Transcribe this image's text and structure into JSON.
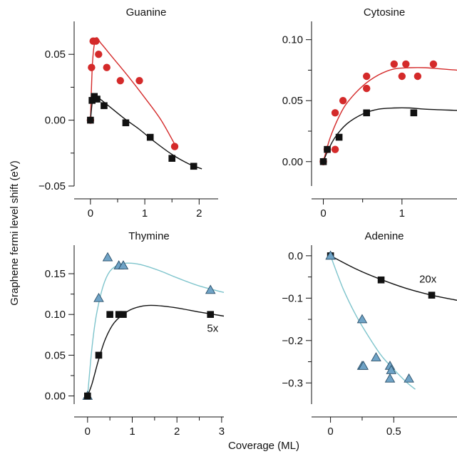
{
  "figure": {
    "ylabel": "Graphene fermi level shift (eV)",
    "xlabel": "Coverage (ML)"
  },
  "colors": {
    "red": "#d42a2a",
    "black": "#111111",
    "teal": "#7ec4cc",
    "triangle_fill": "#6fa3c6",
    "triangle_edge": "#2a4e68"
  },
  "chart_data": [
    {
      "type": "scatter",
      "title": "Guanine",
      "xlim": [
        -0.3,
        2.35
      ],
      "ylim": [
        -0.05,
        0.075
      ],
      "xticks": [
        {
          "v": 0,
          "label": "0"
        },
        {
          "v": 1,
          "label": "1"
        },
        {
          "v": 2,
          "label": "2"
        }
      ],
      "yticks": [
        {
          "v": -0.05,
          "label": "−0.05"
        },
        {
          "v": 0,
          "label": "0.00"
        },
        {
          "v": 0.05,
          "label": "0.05"
        }
      ],
      "series": [
        {
          "marker": "circle",
          "color": "#d42a2a",
          "points": [
            [
              0.0,
              0.0
            ],
            [
              0.02,
              0.04
            ],
            [
              0.05,
              0.06
            ],
            [
              0.1,
              0.06
            ],
            [
              0.15,
              0.05
            ],
            [
              0.3,
              0.04
            ],
            [
              0.55,
              0.03
            ],
            [
              0.9,
              0.03
            ],
            [
              1.55,
              -0.02
            ]
          ],
          "curve": [
            [
              0.0,
              0.0
            ],
            [
              0.04,
              0.045
            ],
            [
              0.1,
              0.062
            ],
            [
              0.2,
              0.058
            ],
            [
              0.4,
              0.048
            ],
            [
              0.7,
              0.033
            ],
            [
              1.0,
              0.017
            ],
            [
              1.3,
              0.0
            ],
            [
              1.6,
              -0.022
            ]
          ]
        },
        {
          "marker": "square",
          "color": "#111111",
          "points": [
            [
              0.0,
              0.0
            ],
            [
              0.03,
              0.015
            ],
            [
              0.07,
              0.018
            ],
            [
              0.12,
              0.016
            ],
            [
              0.25,
              0.011
            ],
            [
              0.65,
              -0.002
            ],
            [
              1.1,
              -0.013
            ],
            [
              1.5,
              -0.029
            ],
            [
              1.9,
              -0.035
            ]
          ],
          "curve": [
            [
              0.0,
              0.0
            ],
            [
              0.04,
              0.015
            ],
            [
              0.1,
              0.018
            ],
            [
              0.3,
              0.012
            ],
            [
              0.6,
              0.002
            ],
            [
              0.9,
              -0.007
            ],
            [
              1.2,
              -0.017
            ],
            [
              1.5,
              -0.026
            ],
            [
              1.8,
              -0.033
            ],
            [
              2.05,
              -0.037
            ]
          ]
        }
      ]
    },
    {
      "type": "scatter",
      "title": "Cytosine",
      "xlim": [
        -0.15,
        1.7
      ],
      "ylim": [
        -0.02,
        0.115
      ],
      "xticks": [
        {
          "v": 0,
          "label": "0"
        },
        {
          "v": 1,
          "label": "1"
        }
      ],
      "yticks": [
        {
          "v": 0,
          "label": "0.00"
        },
        {
          "v": 0.05,
          "label": "0.05"
        },
        {
          "v": 0.1,
          "label": "0.10"
        }
      ],
      "series": [
        {
          "marker": "circle",
          "color": "#d42a2a",
          "points": [
            [
              0.0,
              0.0
            ],
            [
              0.05,
              0.01
            ],
            [
              0.15,
              0.04
            ],
            [
              0.15,
              0.01
            ],
            [
              0.25,
              0.05
            ],
            [
              0.55,
              0.07
            ],
            [
              0.55,
              0.06
            ],
            [
              0.9,
              0.08
            ],
            [
              1.0,
              0.07
            ],
            [
              1.05,
              0.08
            ],
            [
              1.2,
              0.07
            ],
            [
              1.4,
              0.08
            ]
          ],
          "curve": [
            [
              0.0,
              0.0
            ],
            [
              0.05,
              0.012
            ],
            [
              0.1,
              0.022
            ],
            [
              0.2,
              0.037
            ],
            [
              0.3,
              0.048
            ],
            [
              0.5,
              0.062
            ],
            [
              0.7,
              0.071
            ],
            [
              0.9,
              0.076
            ],
            [
              1.1,
              0.077
            ],
            [
              1.3,
              0.077
            ],
            [
              1.5,
              0.076
            ],
            [
              1.7,
              0.075
            ]
          ]
        },
        {
          "marker": "square",
          "color": "#111111",
          "points": [
            [
              0.0,
              0.0
            ],
            [
              0.05,
              0.01
            ],
            [
              0.2,
              0.02
            ],
            [
              0.55,
              0.04
            ],
            [
              1.15,
              0.04
            ]
          ],
          "curve": [
            [
              0.0,
              0.0
            ],
            [
              0.05,
              0.008
            ],
            [
              0.15,
              0.02
            ],
            [
              0.3,
              0.031
            ],
            [
              0.5,
              0.039
            ],
            [
              0.7,
              0.043
            ],
            [
              0.9,
              0.044
            ],
            [
              1.1,
              0.044
            ],
            [
              1.3,
              0.043
            ],
            [
              1.7,
              0.042
            ]
          ]
        }
      ]
    },
    {
      "type": "scatter",
      "title": "Thymine",
      "xlim": [
        -0.3,
        3.05
      ],
      "ylim": [
        -0.01,
        0.185
      ],
      "xticks": [
        {
          "v": 0,
          "label": "0"
        },
        {
          "v": 1,
          "label": "1"
        },
        {
          "v": 2,
          "label": "2"
        },
        {
          "v": 3,
          "label": "3"
        }
      ],
      "yticks": [
        {
          "v": 0,
          "label": "0.00"
        },
        {
          "v": 0.05,
          "label": "0.05"
        },
        {
          "v": 0.1,
          "label": "0.10"
        },
        {
          "v": 0.15,
          "label": "0.15"
        }
      ],
      "annotation": {
        "text": "5x",
        "x": 2.8,
        "y": 0.083
      },
      "series": [
        {
          "marker": "triangle",
          "color": "#6fa3c6",
          "curve_color": "#7ec4cc",
          "points": [
            [
              0.0,
              0.0
            ],
            [
              0.25,
              0.12
            ],
            [
              0.45,
              0.17
            ],
            [
              0.7,
              0.16
            ],
            [
              0.8,
              0.16
            ],
            [
              2.75,
              0.13
            ]
          ],
          "curve": [
            [
              0.0,
              0.0
            ],
            [
              0.1,
              0.06
            ],
            [
              0.2,
              0.1
            ],
            [
              0.35,
              0.135
            ],
            [
              0.5,
              0.153
            ],
            [
              0.7,
              0.161
            ],
            [
              0.9,
              0.163
            ],
            [
              1.2,
              0.161
            ],
            [
              1.6,
              0.154
            ],
            [
              2.0,
              0.145
            ],
            [
              2.5,
              0.135
            ],
            [
              3.05,
              0.127
            ]
          ]
        },
        {
          "marker": "square",
          "color": "#111111",
          "points": [
            [
              0.0,
              0.0
            ],
            [
              0.25,
              0.05
            ],
            [
              0.5,
              0.1
            ],
            [
              0.7,
              0.1
            ],
            [
              0.8,
              0.1
            ],
            [
              2.75,
              0.1
            ]
          ],
          "curve": [
            [
              0.0,
              0.0
            ],
            [
              0.1,
              0.015
            ],
            [
              0.25,
              0.045
            ],
            [
              0.4,
              0.07
            ],
            [
              0.6,
              0.09
            ],
            [
              0.9,
              0.104
            ],
            [
              1.2,
              0.11
            ],
            [
              1.5,
              0.111
            ],
            [
              2.0,
              0.108
            ],
            [
              2.5,
              0.103
            ],
            [
              3.05,
              0.098
            ]
          ]
        }
      ]
    },
    {
      "type": "scatter",
      "title": "Adenine",
      "xlim": [
        -0.15,
        1.0
      ],
      "ylim": [
        -0.35,
        0.025
      ],
      "xticks": [
        {
          "v": 0,
          "label": "0"
        },
        {
          "v": 0.5,
          "label": "0.5"
        }
      ],
      "yticks": [
        {
          "v": -0.3,
          "label": "−0.3"
        },
        {
          "v": -0.2,
          "label": "−0.2"
        },
        {
          "v": -0.1,
          "label": "−0.1"
        },
        {
          "v": 0,
          "label": "0.0"
        }
      ],
      "annotation": {
        "text": "20x",
        "x": 0.77,
        "y": -0.055
      },
      "series": [
        {
          "marker": "square",
          "color": "#111111",
          "points": [
            [
              0.0,
              0.0
            ],
            [
              0.4,
              -0.057
            ],
            [
              0.8,
              -0.093
            ]
          ],
          "curve": [
            [
              0.0,
              0.0
            ],
            [
              0.2,
              -0.031
            ],
            [
              0.4,
              -0.056
            ],
            [
              0.6,
              -0.077
            ],
            [
              0.8,
              -0.093
            ],
            [
              1.0,
              -0.105
            ]
          ]
        },
        {
          "marker": "triangle",
          "color": "#6fa3c6",
          "curve_color": "#7ec4cc",
          "points": [
            [
              0.0,
              0.0
            ],
            [
              0.25,
              -0.15
            ],
            [
              0.25,
              -0.26
            ],
            [
              0.26,
              -0.26
            ],
            [
              0.36,
              -0.24
            ],
            [
              0.47,
              -0.26
            ],
            [
              0.48,
              -0.27
            ],
            [
              0.47,
              -0.29
            ],
            [
              0.62,
              -0.29
            ]
          ],
          "curve": [
            [
              0.0,
              0.0
            ],
            [
              0.1,
              -0.078
            ],
            [
              0.2,
              -0.14
            ],
            [
              0.3,
              -0.19
            ],
            [
              0.4,
              -0.235
            ],
            [
              0.5,
              -0.268
            ],
            [
              0.6,
              -0.298
            ],
            [
              0.67,
              -0.315
            ]
          ]
        }
      ]
    }
  ]
}
